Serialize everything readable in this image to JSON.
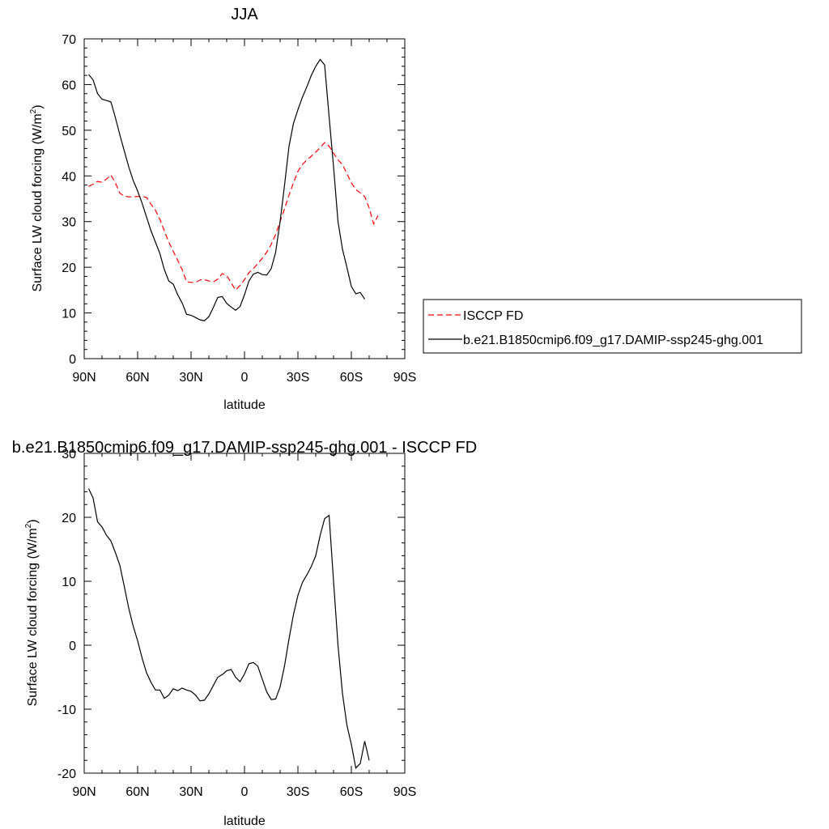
{
  "chart_data": [
    {
      "type": "line",
      "title": "JJA",
      "xlabel": "latitude",
      "ylabel": "Surface LW cloud forcing (W/m",
      "ylabel_sup": "2",
      "ylabel_close": ")",
      "xlim": [
        90,
        -90
      ],
      "ylim": [
        0,
        70
      ],
      "yticks": [
        0,
        10,
        20,
        30,
        40,
        50,
        60,
        70
      ],
      "xticks": [
        {
          "v": 90,
          "label": "90N"
        },
        {
          "v": 60,
          "label": "60N"
        },
        {
          "v": 30,
          "label": "30N"
        },
        {
          "v": 0,
          "label": "0"
        },
        {
          "v": -30,
          "label": "30S"
        },
        {
          "v": -60,
          "label": "60S"
        },
        {
          "v": -90,
          "label": "90S"
        }
      ],
      "legend_position": "right",
      "series": [
        {
          "name": "ISCCP FD",
          "color": "#ff0000",
          "dash": true,
          "points": [
            [
              87.5,
              37.7
            ],
            [
              85,
              38.2
            ],
            [
              82.5,
              38.8
            ],
            [
              80,
              38.6
            ],
            [
              77.5,
              39.3
            ],
            [
              75,
              40.2
            ],
            [
              72.5,
              38.5
            ],
            [
              70,
              36.2
            ],
            [
              67.5,
              35.6
            ],
            [
              65,
              35.4
            ],
            [
              62.5,
              35.4
            ],
            [
              60,
              35.5
            ],
            [
              57.5,
              35.5
            ],
            [
              55,
              35.3
            ],
            [
              52.5,
              33.8
            ],
            [
              50,
              32.5
            ],
            [
              47.5,
              30.5
            ],
            [
              45,
              28
            ],
            [
              42.5,
              25.5
            ],
            [
              40,
              23.5
            ],
            [
              37.5,
              21.5
            ],
            [
              35,
              19.5
            ],
            [
              32.5,
              16.8
            ],
            [
              30,
              16.7
            ],
            [
              27.5,
              16.7
            ],
            [
              25,
              17.2
            ],
            [
              22.5,
              17.3
            ],
            [
              20,
              17
            ],
            [
              17.5,
              16.8
            ],
            [
              15,
              17.4
            ],
            [
              12.5,
              18.6
            ],
            [
              10,
              18.2
            ],
            [
              7.5,
              16.6
            ],
            [
              5,
              15
            ],
            [
              2.5,
              16
            ],
            [
              0,
              17.3
            ],
            [
              -2.5,
              18.8
            ],
            [
              -5,
              19.7
            ],
            [
              -7.5,
              20.8
            ],
            [
              -10,
              22
            ],
            [
              -12.5,
              23.3
            ],
            [
              -15,
              25
            ],
            [
              -17.5,
              27.2
            ],
            [
              -20,
              30
            ],
            [
              -22.5,
              32.8
            ],
            [
              -25,
              35.8
            ],
            [
              -27.5,
              38.5
            ],
            [
              -30,
              41
            ],
            [
              -32.5,
              42.5
            ],
            [
              -35,
              43.5
            ],
            [
              -37.5,
              44.3
            ],
            [
              -40,
              45.2
            ],
            [
              -42.5,
              46.2
            ],
            [
              -45,
              47.3
            ],
            [
              -47.5,
              46.5
            ],
            [
              -50,
              45
            ],
            [
              -52.5,
              43.5
            ],
            [
              -55,
              42.5
            ],
            [
              -57.5,
              40.5
            ],
            [
              -60,
              38.5
            ],
            [
              -62.5,
              37
            ],
            [
              -65,
              36.3
            ],
            [
              -67.5,
              35.5
            ],
            [
              -70,
              33
            ],
            [
              -72.5,
              29.5
            ],
            [
              -75,
              31.3
            ]
          ]
        },
        {
          "name": "b.e21.B1850cmip6.f09_g17.DAMIP-ssp245-ghg.001",
          "color": "#000000",
          "dash": false,
          "points": [
            [
              87.5,
              62.2
            ],
            [
              85,
              61
            ],
            [
              82.5,
              58
            ],
            [
              80,
              56.8
            ],
            [
              77.5,
              56.5
            ],
            [
              75,
              56.2
            ],
            [
              72.5,
              52.8
            ],
            [
              70,
              49
            ],
            [
              67.5,
              45.5
            ],
            [
              65,
              42
            ],
            [
              62.5,
              39
            ],
            [
              60,
              36.7
            ],
            [
              57.5,
              34
            ],
            [
              55,
              31
            ],
            [
              52.5,
              28
            ],
            [
              50,
              25.5
            ],
            [
              47.5,
              23
            ],
            [
              45,
              19.5
            ],
            [
              42.5,
              17
            ],
            [
              40,
              16.3
            ],
            [
              37.5,
              14
            ],
            [
              35,
              12.2
            ],
            [
              32.5,
              9.7
            ],
            [
              30,
              9.5
            ],
            [
              27.5,
              9
            ],
            [
              25,
              8.5
            ],
            [
              22.5,
              8.3
            ],
            [
              20,
              9.2
            ],
            [
              17.5,
              11.2
            ],
            [
              15,
              13.4
            ],
            [
              12.5,
              13.6
            ],
            [
              10,
              12.1
            ],
            [
              7.5,
              11.3
            ],
            [
              5,
              10.6
            ],
            [
              2.5,
              11.4
            ],
            [
              0,
              14
            ],
            [
              -2.5,
              17
            ],
            [
              -5,
              18.5
            ],
            [
              -7.5,
              18.9
            ],
            [
              -10,
              18.4
            ],
            [
              -12.5,
              18.3
            ],
            [
              -15,
              19.7
            ],
            [
              -17.5,
              23.3
            ],
            [
              -20,
              30
            ],
            [
              -22.5,
              38
            ],
            [
              -25,
              46.5
            ],
            [
              -27.5,
              51.5
            ],
            [
              -30,
              54.5
            ],
            [
              -32.5,
              57.2
            ],
            [
              -35,
              59.5
            ],
            [
              -37.5,
              62
            ],
            [
              -40,
              64
            ],
            [
              -42.5,
              65.5
            ],
            [
              -45,
              64.3
            ],
            [
              -47.5,
              53
            ],
            [
              -50,
              42
            ],
            [
              -52.5,
              30
            ],
            [
              -55,
              24
            ],
            [
              -57.5,
              20
            ],
            [
              -60,
              15.8
            ],
            [
              -62.5,
              14.2
            ],
            [
              -65,
              14.5
            ],
            [
              -67.5,
              13
            ]
          ]
        }
      ]
    },
    {
      "type": "line",
      "title": "b.e21.B1850cmip6.f09_g17.DAMIP-ssp245-ghg.001 - ISCCP FD",
      "xlabel": "latitude",
      "ylabel": "Surface LW cloud forcing (W/m",
      "ylabel_sup": "2",
      "ylabel_close": ")",
      "xlim": [
        90,
        -90
      ],
      "ylim": [
        -20,
        30
      ],
      "yticks": [
        -20,
        -10,
        0,
        10,
        20,
        30
      ],
      "xticks": [
        {
          "v": 90,
          "label": "90N"
        },
        {
          "v": 60,
          "label": "60N"
        },
        {
          "v": 30,
          "label": "30N"
        },
        {
          "v": 0,
          "label": "0"
        },
        {
          "v": -30,
          "label": "30S"
        },
        {
          "v": -60,
          "label": "60S"
        },
        {
          "v": -90,
          "label": "90S"
        }
      ],
      "series": [
        {
          "color": "#000000",
          "dash": false,
          "points": [
            [
              87.5,
              24.5
            ],
            [
              85,
              23
            ],
            [
              82.5,
              19.3
            ],
            [
              80,
              18.5
            ],
            [
              77.5,
              17.2
            ],
            [
              75,
              16.3
            ],
            [
              72.5,
              14.5
            ],
            [
              70,
              12.5
            ],
            [
              67.5,
              9.2
            ],
            [
              65,
              5.8
            ],
            [
              62.5,
              3
            ],
            [
              60,
              0.7
            ],
            [
              57.5,
              -2
            ],
            [
              55,
              -4.3
            ],
            [
              52.5,
              -5.8
            ],
            [
              50,
              -7
            ],
            [
              47.5,
              -7
            ],
            [
              45,
              -8.3
            ],
            [
              42.5,
              -7.8
            ],
            [
              40,
              -6.8
            ],
            [
              37.5,
              -7.1
            ],
            [
              35,
              -6.7
            ],
            [
              32.5,
              -7
            ],
            [
              30,
              -7.2
            ],
            [
              27.5,
              -7.8
            ],
            [
              25,
              -8.7
            ],
            [
              22.5,
              -8.6
            ],
            [
              20,
              -7.6
            ],
            [
              17.5,
              -6.3
            ],
            [
              15,
              -5
            ],
            [
              12.5,
              -4.6
            ],
            [
              10,
              -4
            ],
            [
              7.5,
              -3.8
            ],
            [
              5,
              -5
            ],
            [
              2.5,
              -5.7
            ],
            [
              0,
              -4.5
            ],
            [
              -2.5,
              -2.9
            ],
            [
              -5,
              -2.7
            ],
            [
              -7.5,
              -3.3
            ],
            [
              -10,
              -5.3
            ],
            [
              -12.5,
              -7.3
            ],
            [
              -15,
              -8.5
            ],
            [
              -17.5,
              -8.4
            ],
            [
              -20,
              -6.5
            ],
            [
              -22.5,
              -3.2
            ],
            [
              -25,
              1
            ],
            [
              -27.5,
              4.8
            ],
            [
              -30,
              7.8
            ],
            [
              -32.5,
              9.8
            ],
            [
              -35,
              11
            ],
            [
              -37.5,
              12.3
            ],
            [
              -40,
              14
            ],
            [
              -42.5,
              17.2
            ],
            [
              -45,
              19.8
            ],
            [
              -47.5,
              20.3
            ],
            [
              -50,
              10
            ],
            [
              -52.5,
              0
            ],
            [
              -55,
              -7.5
            ],
            [
              -57.5,
              -12.5
            ],
            [
              -60,
              -15.5
            ],
            [
              -62.5,
              -19.2
            ],
            [
              -65,
              -18.5
            ],
            [
              -67.5,
              -15
            ],
            [
              -70,
              -18
            ]
          ]
        }
      ]
    }
  ]
}
